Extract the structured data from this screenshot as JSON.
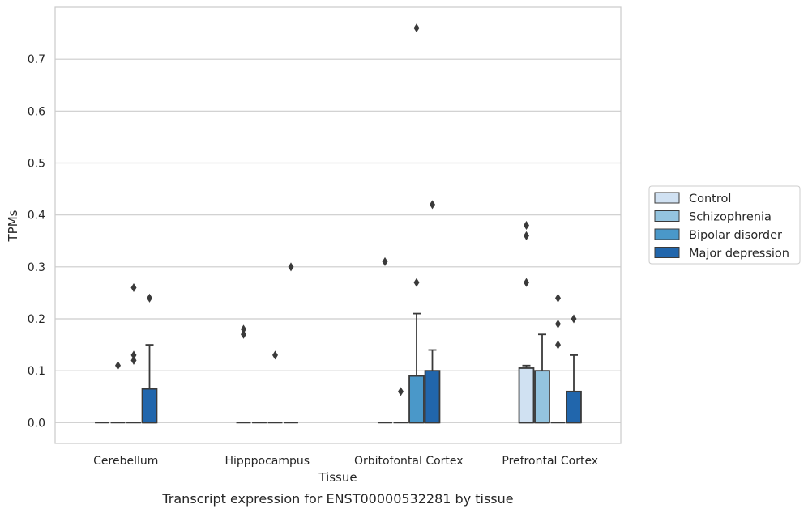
{
  "chart_data": {
    "type": "bar",
    "subtype": "boxplot",
    "caption": "Transcript expression for ENST00000532281 by tissue",
    "xlabel": "Tissue",
    "ylabel": "TPMs",
    "ylim": [
      -0.04,
      0.8
    ],
    "yticks": [
      0.0,
      0.1,
      0.2,
      0.3,
      0.4,
      0.5,
      0.6,
      0.7
    ],
    "grid": true,
    "legend_position": "right",
    "categories": [
      "Cerebellum",
      "Hipppocampus",
      "Orbitofontal Cortex",
      "Prefrontal Cortex"
    ],
    "series": [
      {
        "name": "Control",
        "color": "#d0e1f2",
        "boxes": [
          {
            "q1": 0,
            "median": 0,
            "q3": 0,
            "whisker_low": 0,
            "whisker_high": 0,
            "outliers": []
          },
          {
            "q1": 0,
            "median": 0,
            "q3": 0,
            "whisker_low": 0,
            "whisker_high": 0,
            "outliers": [
              0.17,
              0.18
            ]
          },
          {
            "q1": 0,
            "median": 0,
            "q3": 0,
            "whisker_low": 0,
            "whisker_high": 0,
            "outliers": [
              0.31
            ]
          },
          {
            "q1": 0,
            "median": 0,
            "q3": 0.105,
            "whisker_low": 0,
            "whisker_high": 0.11,
            "outliers": [
              0.27,
              0.36,
              0.38
            ]
          }
        ]
      },
      {
        "name": "Schizophrenia",
        "color": "#94c4df",
        "boxes": [
          {
            "q1": 0,
            "median": 0,
            "q3": 0,
            "whisker_low": 0,
            "whisker_high": 0,
            "outliers": [
              0.11
            ]
          },
          {
            "q1": 0,
            "median": 0,
            "q3": 0,
            "whisker_low": 0,
            "whisker_high": 0,
            "outliers": []
          },
          {
            "q1": 0,
            "median": 0,
            "q3": 0,
            "whisker_low": 0,
            "whisker_high": 0,
            "outliers": [
              0.06
            ]
          },
          {
            "q1": 0,
            "median": 0,
            "q3": 0.1,
            "whisker_low": 0,
            "whisker_high": 0.17,
            "outliers": []
          }
        ]
      },
      {
        "name": "Bipolar disorder",
        "color": "#4a98c9",
        "boxes": [
          {
            "q1": 0,
            "median": 0,
            "q3": 0,
            "whisker_low": 0,
            "whisker_high": 0,
            "outliers": [
              0.12,
              0.13,
              0.26
            ]
          },
          {
            "q1": 0,
            "median": 0,
            "q3": 0,
            "whisker_low": 0,
            "whisker_high": 0,
            "outliers": [
              0.13
            ]
          },
          {
            "q1": 0,
            "median": 0,
            "q3": 0.09,
            "whisker_low": 0,
            "whisker_high": 0.21,
            "outliers": [
              0.27,
              0.76
            ]
          },
          {
            "q1": 0,
            "median": 0,
            "q3": 0,
            "whisker_low": 0,
            "whisker_high": 0,
            "outliers": [
              0.15,
              0.19,
              0.24
            ]
          }
        ]
      },
      {
        "name": "Major depression",
        "color": "#2166ac",
        "boxes": [
          {
            "q1": 0,
            "median": 0,
            "q3": 0.065,
            "whisker_low": 0,
            "whisker_high": 0.15,
            "outliers": [
              0.24
            ]
          },
          {
            "q1": 0,
            "median": 0,
            "q3": 0,
            "whisker_low": 0,
            "whisker_high": 0,
            "outliers": [
              0.3
            ]
          },
          {
            "q1": 0,
            "median": 0,
            "q3": 0.1,
            "whisker_low": 0,
            "whisker_high": 0.14,
            "outliers": [
              0.42
            ]
          },
          {
            "q1": 0,
            "median": 0,
            "q3": 0.06,
            "whisker_low": 0,
            "whisker_high": 0.13,
            "outliers": [
              0.2
            ]
          }
        ]
      }
    ],
    "colors": {
      "grid": "#cccccc",
      "frame": "#cccccc",
      "edge": "#3a3a3a",
      "outlier": "#3a3a3a"
    }
  }
}
